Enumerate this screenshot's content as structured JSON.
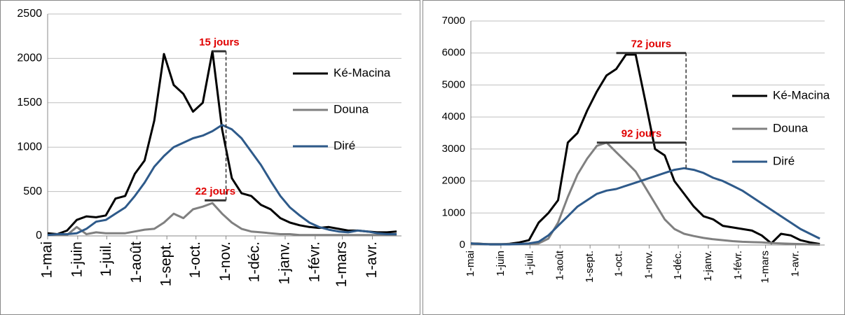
{
  "chart_data": [
    {
      "type": "line",
      "x": [
        0,
        10,
        20,
        30,
        40,
        50,
        60,
        70,
        80,
        90,
        100,
        110,
        120,
        130,
        140,
        150,
        160,
        170,
        180,
        190,
        200,
        210,
        220,
        230,
        240,
        250,
        260,
        270,
        280,
        290,
        300,
        310,
        320,
        330,
        340,
        350,
        360
      ],
      "series": [
        {
          "name": "Ké-Macina",
          "color": "#000000",
          "values": [
            30,
            20,
            60,
            180,
            220,
            210,
            230,
            420,
            450,
            700,
            850,
            1300,
            2050,
            1700,
            1600,
            1400,
            1500,
            2080,
            1200,
            650,
            480,
            450,
            350,
            300,
            200,
            150,
            120,
            100,
            90,
            100,
            80,
            60,
            60,
            50,
            40,
            40,
            50
          ]
        },
        {
          "name": "Douna",
          "color": "#808080",
          "values": [
            10,
            10,
            10,
            100,
            20,
            40,
            30,
            30,
            30,
            50,
            70,
            80,
            150,
            250,
            200,
            300,
            330,
            370,
            250,
            150,
            80,
            50,
            40,
            30,
            20,
            20,
            10,
            10,
            10,
            10,
            10,
            10,
            10,
            10,
            10,
            10,
            10
          ]
        },
        {
          "name": "Diré",
          "color": "#2e5a8a",
          "values": [
            10,
            20,
            20,
            30,
            80,
            160,
            180,
            250,
            320,
            450,
            600,
            780,
            900,
            1000,
            1050,
            1100,
            1130,
            1180,
            1250,
            1200,
            1100,
            950,
            800,
            620,
            450,
            320,
            230,
            150,
            100,
            70,
            50,
            40,
            60,
            50,
            30,
            20,
            20
          ]
        }
      ],
      "xlim": [
        0,
        365
      ],
      "xticks": [
        {
          "value": 0,
          "label": "1-mai"
        },
        {
          "value": 31,
          "label": "1-juin"
        },
        {
          "value": 61,
          "label": "1-juil."
        },
        {
          "value": 92,
          "label": "1-août"
        },
        {
          "value": 123,
          "label": "1-sept."
        },
        {
          "value": 153,
          "label": "1-oct."
        },
        {
          "value": 184,
          "label": "1-nov."
        },
        {
          "value": 214,
          "label": "1-déc."
        },
        {
          "value": 245,
          "label": "1-janv."
        },
        {
          "value": 276,
          "label": "1-févr."
        },
        {
          "value": 304,
          "label": "1-mars"
        },
        {
          "value": 335,
          "label": "1-avr."
        }
      ],
      "ylim": [
        0,
        2500
      ],
      "yticks": [
        0,
        500,
        1000,
        1500,
        2000,
        2500
      ],
      "grid": true,
      "annotations": [
        {
          "label": "15 jours",
          "x_from": 170,
          "x_to": 184,
          "y": 2080
        },
        {
          "label": "22 jours",
          "x_from": 162,
          "x_to": 184,
          "y": 400
        }
      ],
      "dashed_lines": [
        {
          "x": 184,
          "y_from": 400,
          "y_to": 2080
        }
      ]
    },
    {
      "type": "line",
      "x": [
        0,
        10,
        20,
        30,
        40,
        50,
        60,
        70,
        80,
        90,
        100,
        110,
        120,
        130,
        140,
        150,
        160,
        170,
        180,
        190,
        200,
        210,
        220,
        230,
        240,
        250,
        260,
        270,
        280,
        290,
        300,
        310,
        320,
        330,
        340,
        350,
        360
      ],
      "series": [
        {
          "name": "Ké-Macina",
          "color": "#000000",
          "values": [
            50,
            40,
            20,
            20,
            40,
            80,
            150,
            700,
            1000,
            1400,
            3200,
            3500,
            4200,
            4800,
            5300,
            5500,
            5950,
            5950,
            4500,
            3000,
            2800,
            2000,
            1600,
            1200,
            900,
            800,
            600,
            550,
            500,
            450,
            300,
            50,
            350,
            300,
            150,
            80,
            30
          ]
        },
        {
          "name": "Douna",
          "color": "#808080",
          "values": [
            30,
            30,
            30,
            30,
            30,
            30,
            30,
            50,
            200,
            700,
            1500,
            2200,
            2700,
            3100,
            3200,
            2900,
            2600,
            2300,
            1800,
            1300,
            800,
            500,
            350,
            280,
            220,
            180,
            150,
            120,
            100,
            90,
            80,
            60,
            50,
            40,
            30,
            20,
            10
          ]
        },
        {
          "name": "Diré",
          "color": "#2e5a8a",
          "values": [
            50,
            30,
            20,
            20,
            20,
            30,
            50,
            100,
            300,
            600,
            900,
            1200,
            1400,
            1600,
            1700,
            1750,
            1850,
            1950,
            2050,
            2150,
            2250,
            2350,
            2400,
            2350,
            2250,
            2100,
            2000,
            1850,
            1700,
            1500,
            1300,
            1100,
            900,
            700,
            500,
            350,
            200
          ]
        }
      ],
      "xlim": [
        0,
        365
      ],
      "xticks": [
        {
          "value": 0,
          "label": "1-mai"
        },
        {
          "value": 31,
          "label": "1-juin"
        },
        {
          "value": 61,
          "label": "1-juil."
        },
        {
          "value": 92,
          "label": "1-août"
        },
        {
          "value": 123,
          "label": "1-sept."
        },
        {
          "value": 153,
          "label": "1-oct."
        },
        {
          "value": 184,
          "label": "1-nov."
        },
        {
          "value": 214,
          "label": "1-déc."
        },
        {
          "value": 245,
          "label": "1-janv."
        },
        {
          "value": 276,
          "label": "1-févr."
        },
        {
          "value": 304,
          "label": "1-mars"
        },
        {
          "value": 335,
          "label": "1-avr."
        }
      ],
      "ylim": [
        0,
        7000
      ],
      "yticks": [
        0,
        1000,
        2000,
        3000,
        4000,
        5000,
        6000,
        7000
      ],
      "grid": true,
      "annotations": [
        {
          "label": "72 jours",
          "x_from": 150,
          "x_to": 222,
          "y": 6000
        },
        {
          "label": "92 jours",
          "x_from": 130,
          "x_to": 222,
          "y": 3200
        }
      ],
      "dashed_lines": [
        {
          "x": 222,
          "y_from": 2400,
          "y_to": 6000
        }
      ]
    }
  ]
}
